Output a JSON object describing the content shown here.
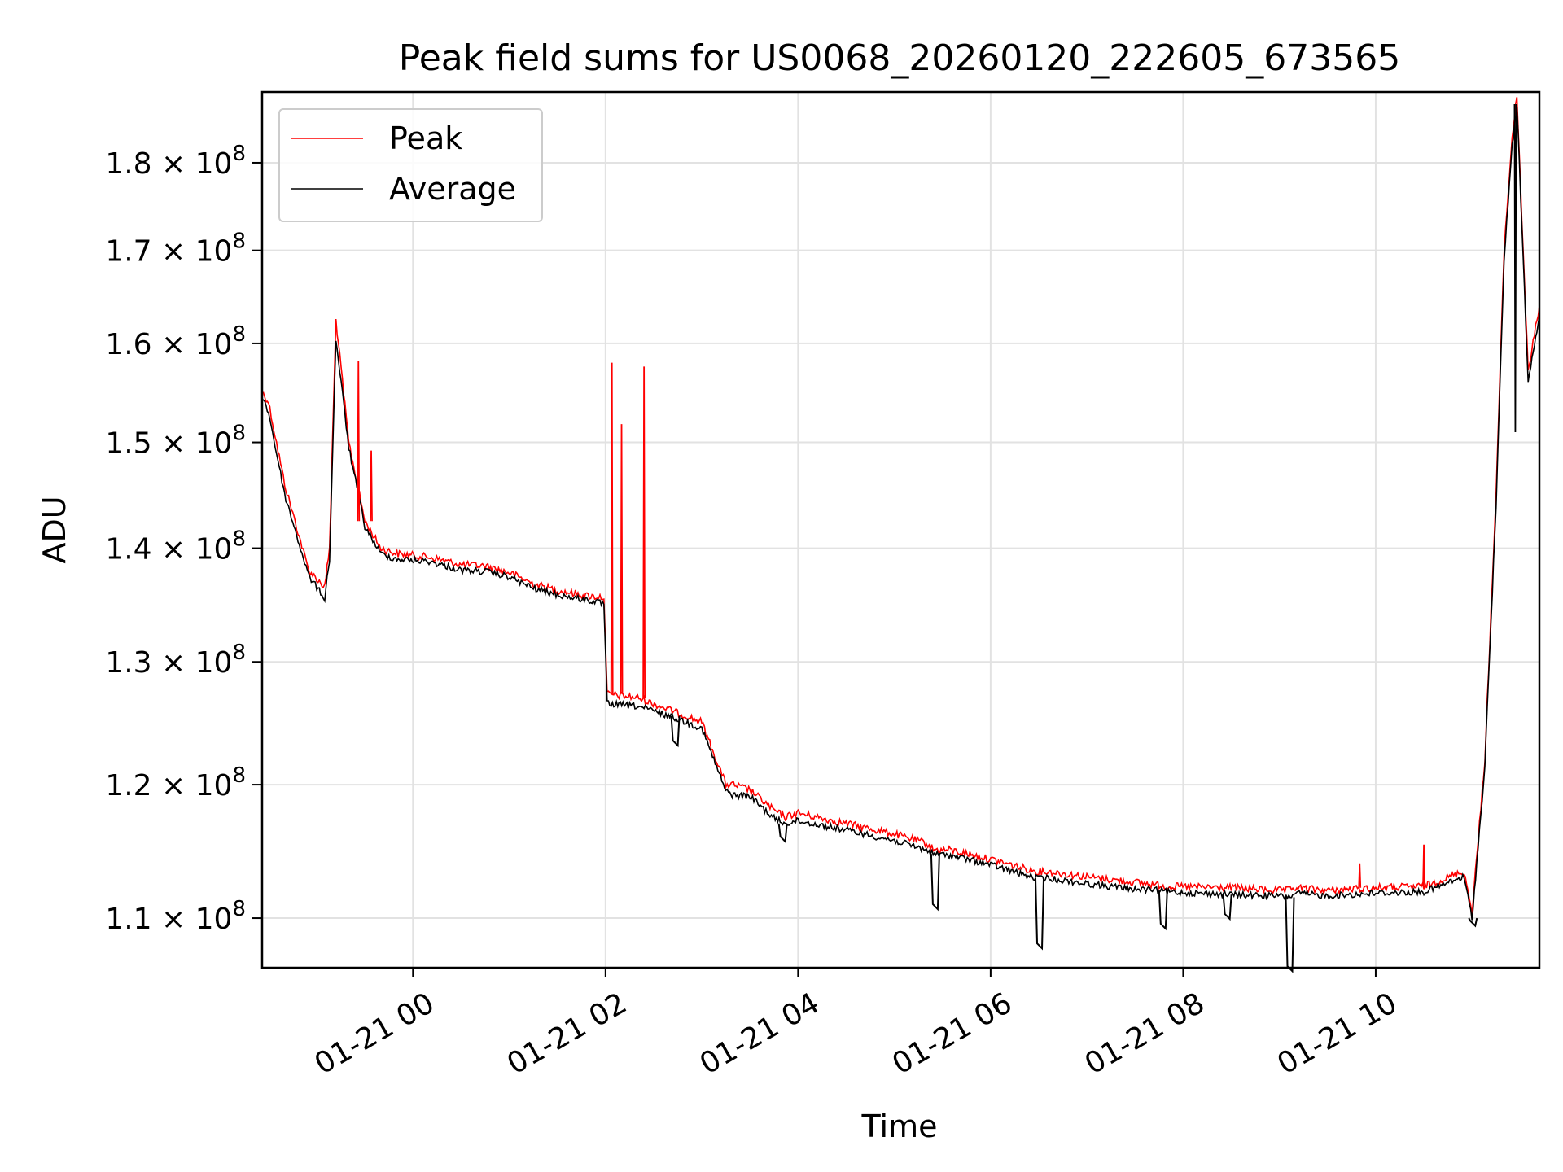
{
  "chart_data": {
    "type": "line",
    "title": "Peak field sums for US0068_20260120_222605_673565",
    "xlabel": "Time",
    "ylabel": "ADU",
    "x_axis": "datetime",
    "y_scale": "log",
    "xlim": [
      "2026-01-20 22:26",
      "2026-01-21 11:42"
    ],
    "ylim": [
      106500000,
      188500000
    ],
    "grid": true,
    "legend_position": "upper-left",
    "x_ticks": [
      "2026-01-21 00:00",
      "2026-01-21 02:00",
      "2026-01-21 04:00",
      "2026-01-21 06:00",
      "2026-01-21 08:00",
      "2026-01-21 10:00"
    ],
    "x_tick_labels": [
      "01-21 00",
      "01-21 02",
      "01-21 04",
      "01-21 06",
      "01-21 08",
      "01-21 10"
    ],
    "y_ticks": [
      110000000,
      120000000,
      130000000,
      140000000,
      150000000,
      160000000,
      170000000,
      180000000
    ],
    "y_tick_mantissa": [
      "1.1",
      "1.2",
      "1.3",
      "1.4",
      "1.5",
      "1.6",
      "1.7",
      "1.8"
    ],
    "y_tick_times": "×",
    "y_tick_base": "10",
    "y_tick_exponent": "8",
    "series": [
      {
        "name": "Peak",
        "color": "#ff0000",
        "x": [
          "2026-01-20 22:26",
          "2026-01-20 22:30",
          "2026-01-20 22:40",
          "2026-01-20 22:55",
          "2026-01-20 23:05",
          "2026-01-20 23:08",
          "2026-01-20 23:12",
          "2026-01-20 23:20",
          "2026-01-20 23:30",
          "2026-01-20 23:40",
          "2026-01-20 23:50",
          "2026-01-21 00:10",
          "2026-01-21 00:30",
          "2026-01-21 00:45",
          "2026-01-21 01:00",
          "2026-01-21 01:15",
          "2026-01-21 01:30",
          "2026-01-21 01:50",
          "2026-01-21 01:59",
          "2026-01-21 02:01",
          "2026-01-21 02:20",
          "2026-01-21 02:40",
          "2026-01-21 03:00",
          "2026-01-21 03:15",
          "2026-01-21 03:19",
          "2026-01-21 03:30",
          "2026-01-21 03:45",
          "2026-01-21 03:52",
          "2026-01-21 04:00",
          "2026-01-21 04:30",
          "2026-01-21 05:00",
          "2026-01-21 05:20",
          "2026-01-21 05:25",
          "2026-01-21 05:35",
          "2026-01-21 06:00",
          "2026-01-21 06:25",
          "2026-01-21 06:30",
          "2026-01-21 06:35",
          "2026-01-21 07:00",
          "2026-01-21 07:30",
          "2026-01-21 07:45",
          "2026-01-21 07:50",
          "2026-01-21 08:30",
          "2026-01-21 09:00",
          "2026-01-21 09:05",
          "2026-01-21 09:10",
          "2026-01-21 09:30",
          "2026-01-21 10:00",
          "2026-01-21 10:30",
          "2026-01-21 10:55",
          "2026-01-21 11:00",
          "2026-01-21 11:03",
          "2026-01-21 11:08",
          "2026-01-21 11:15",
          "2026-01-21 11:20",
          "2026-01-21 11:25",
          "2026-01-21 11:28",
          "2026-01-21 11:35",
          "2026-01-21 11:42"
        ],
        "y": [
          155000000,
          154000000,
          146000000,
          138000000,
          136500000,
          140000000,
          162500000,
          150000000,
          142500000,
          140000000,
          139500000,
          139200000,
          138500000,
          138400000,
          137800000,
          136800000,
          136200000,
          135700000,
          135600000,
          127300000,
          127000000,
          126000000,
          125000000,
          120000000,
          120000000,
          119600000,
          118000000,
          117500000,
          117800000,
          117000000,
          116200000,
          115500000,
          115000000,
          115000000,
          114300000,
          113500000,
          113400000,
          113400000,
          113000000,
          112600000,
          112400000,
          112300000,
          112200000,
          112000000,
          112000000,
          112200000,
          112000000,
          112200000,
          112300000,
          113400000,
          110500000,
          114500000,
          122000000,
          145000000,
          170000000,
          183000000,
          188000000,
          157000000,
          164000000
        ]
      },
      {
        "name": "Average",
        "color": "#000000",
        "x": [
          "2026-01-20 22:26",
          "2026-01-20 22:30",
          "2026-01-20 22:40",
          "2026-01-20 22:55",
          "2026-01-20 23:05",
          "2026-01-20 23:08",
          "2026-01-20 23:12",
          "2026-01-20 23:20",
          "2026-01-20 23:30",
          "2026-01-20 23:40",
          "2026-01-20 23:50",
          "2026-01-21 00:10",
          "2026-01-21 00:30",
          "2026-01-21 00:45",
          "2026-01-21 01:00",
          "2026-01-21 01:15",
          "2026-01-21 01:30",
          "2026-01-21 01:50",
          "2026-01-21 01:59",
          "2026-01-21 02:01",
          "2026-01-21 02:20",
          "2026-01-21 02:40",
          "2026-01-21 03:00",
          "2026-01-21 03:15",
          "2026-01-21 03:19",
          "2026-01-21 03:30",
          "2026-01-21 03:45",
          "2026-01-21 03:52",
          "2026-01-21 04:00",
          "2026-01-21 04:30",
          "2026-01-21 05:00",
          "2026-01-21 05:20",
          "2026-01-21 05:25",
          "2026-01-21 05:35",
          "2026-01-21 06:00",
          "2026-01-21 06:25",
          "2026-01-21 06:30",
          "2026-01-21 06:35",
          "2026-01-21 07:00",
          "2026-01-21 07:30",
          "2026-01-21 07:45",
          "2026-01-21 07:50",
          "2026-01-21 08:30",
          "2026-01-21 09:00",
          "2026-01-21 09:05",
          "2026-01-21 09:10",
          "2026-01-21 09:30",
          "2026-01-21 10:00",
          "2026-01-21 10:30",
          "2026-01-21 10:55",
          "2026-01-21 11:00",
          "2026-01-21 11:03",
          "2026-01-21 11:08",
          "2026-01-21 11:15",
          "2026-01-21 11:20",
          "2026-01-21 11:25",
          "2026-01-21 11:28",
          "2026-01-21 11:35",
          "2026-01-21 11:42"
        ],
        "y": [
          154500000,
          153000000,
          145000000,
          137500000,
          135500000,
          139000000,
          160500000,
          149500000,
          142000000,
          139500000,
          139000000,
          138800000,
          138000000,
          137900000,
          137400000,
          136400000,
          135800000,
          135300000,
          135000000,
          126500000,
          126300000,
          125500000,
          124500000,
          119500000,
          119200000,
          119100000,
          117400000,
          117000000,
          117200000,
          116500000,
          115700000,
          115000000,
          114700000,
          114600000,
          113900000,
          113000000,
          112900000,
          112900000,
          112500000,
          112100000,
          112000000,
          111900000,
          111700000,
          111600000,
          111500000,
          111800000,
          111600000,
          111800000,
          111900000,
          113000000,
          110000000,
          114000000,
          121500000,
          144000000,
          169000000,
          182000000,
          187000000,
          156000000,
          163000000
        ]
      }
    ],
    "spikes": [
      {
        "series": "Peak",
        "x": "2026-01-20 23:26",
        "y": 158200000
      },
      {
        "series": "Peak",
        "x": "2026-01-20 23:34",
        "y": 149200000
      },
      {
        "series": "Peak",
        "x": "2026-01-21 02:04",
        "y": 158000000
      },
      {
        "series": "Peak",
        "x": "2026-01-21 02:10",
        "y": 151800000
      },
      {
        "series": "Peak",
        "x": "2026-01-21 02:24",
        "y": 157600000
      },
      {
        "series": "Peak",
        "x": "2026-01-21 09:50",
        "y": 114000000
      },
      {
        "series": "Peak",
        "x": "2026-01-21 10:30",
        "y": 115400000
      },
      {
        "series": "Average",
        "x": "2026-01-21 11:27",
        "y": 151000000
      }
    ],
    "dips": [
      {
        "x": "2026-01-21 02:43",
        "y": 123500000
      },
      {
        "x": "2026-01-21 03:50",
        "y": 116000000
      },
      {
        "x": "2026-01-21 05:25",
        "y": 111000000
      },
      {
        "x": "2026-01-21 06:30",
        "y": 108200000
      },
      {
        "x": "2026-01-21 07:47",
        "y": 109600000
      },
      {
        "x": "2026-01-21 08:27",
        "y": 110300000
      },
      {
        "x": "2026-01-21 09:06",
        "y": 106600000
      },
      {
        "x": "2026-01-21 11:00",
        "y": 109800000
      }
    ]
  }
}
